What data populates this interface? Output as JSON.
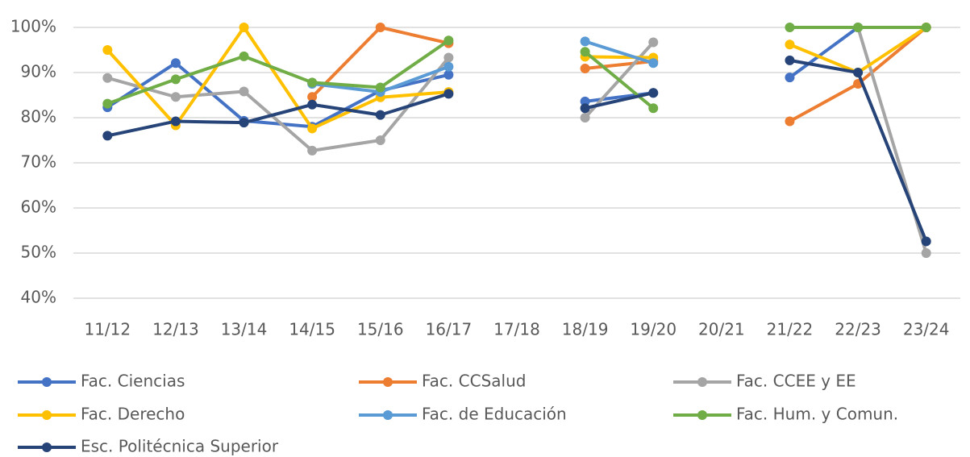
{
  "chart_data": {
    "type": "line",
    "categories": [
      "11/12",
      "12/13",
      "13/14",
      "14/15",
      "15/16",
      "16/17",
      "17/18",
      "18/19",
      "19/20",
      "20/21",
      "21/22",
      "22/23",
      "23/24"
    ],
    "series": [
      {
        "name": "Fac. Ciencias",
        "color": "#4472c4",
        "values": [
          82.3,
          92.1,
          79.3,
          78,
          86,
          89.5,
          null,
          83.6,
          85.5,
          null,
          88.9,
          100,
          100
        ]
      },
      {
        "name": "Fac. CCSalud",
        "color": "#ed7d31",
        "values": [
          null,
          null,
          null,
          84.6,
          100,
          96.5,
          null,
          90.9,
          92.5,
          null,
          79.2,
          87.5,
          100
        ]
      },
      {
        "name": "Fac. CCEE y EE",
        "color": "#a5a5a5",
        "values": [
          88.8,
          84.6,
          85.8,
          72.7,
          75,
          93.3,
          null,
          80,
          96.7,
          null,
          null,
          100,
          50
        ]
      },
      {
        "name": "Fac. Derecho",
        "color": "#ffc000",
        "values": [
          95,
          78.3,
          100,
          77.6,
          84.5,
          85.7,
          null,
          93.5,
          93.3,
          null,
          96.2,
          90,
          100
        ]
      },
      {
        "name": "Fac. de Educación",
        "color": "#5b9bd5",
        "values": [
          null,
          null,
          null,
          87.5,
          85.7,
          91.3,
          null,
          96.9,
          92.1,
          null,
          null,
          null,
          null
        ]
      },
      {
        "name": "Fac. Hum. y Comun.",
        "color": "#70ad47",
        "values": [
          83.1,
          88.5,
          93.6,
          87.8,
          86.7,
          97.1,
          null,
          94.6,
          82.1,
          null,
          100,
          100,
          100
        ]
      },
      {
        "name": "Esc. Politécnica Superior",
        "color": "#264478",
        "values": [
          76,
          79.2,
          78.9,
          82.9,
          80.6,
          85.3,
          null,
          82.1,
          85.5,
          null,
          92.7,
          90,
          52.6
        ]
      }
    ],
    "ylim": [
      40,
      100
    ],
    "yticks": [
      {
        "value": 40,
        "label": "40%"
      },
      {
        "value": 50,
        "label": "50%"
      },
      {
        "value": 60,
        "label": "60%"
      },
      {
        "value": 70,
        "label": "70%"
      },
      {
        "value": 80,
        "label": "80%"
      },
      {
        "value": 90,
        "label": "90%"
      },
      {
        "value": 100,
        "label": "100%"
      }
    ],
    "grid": true,
    "legend": "bottom"
  }
}
